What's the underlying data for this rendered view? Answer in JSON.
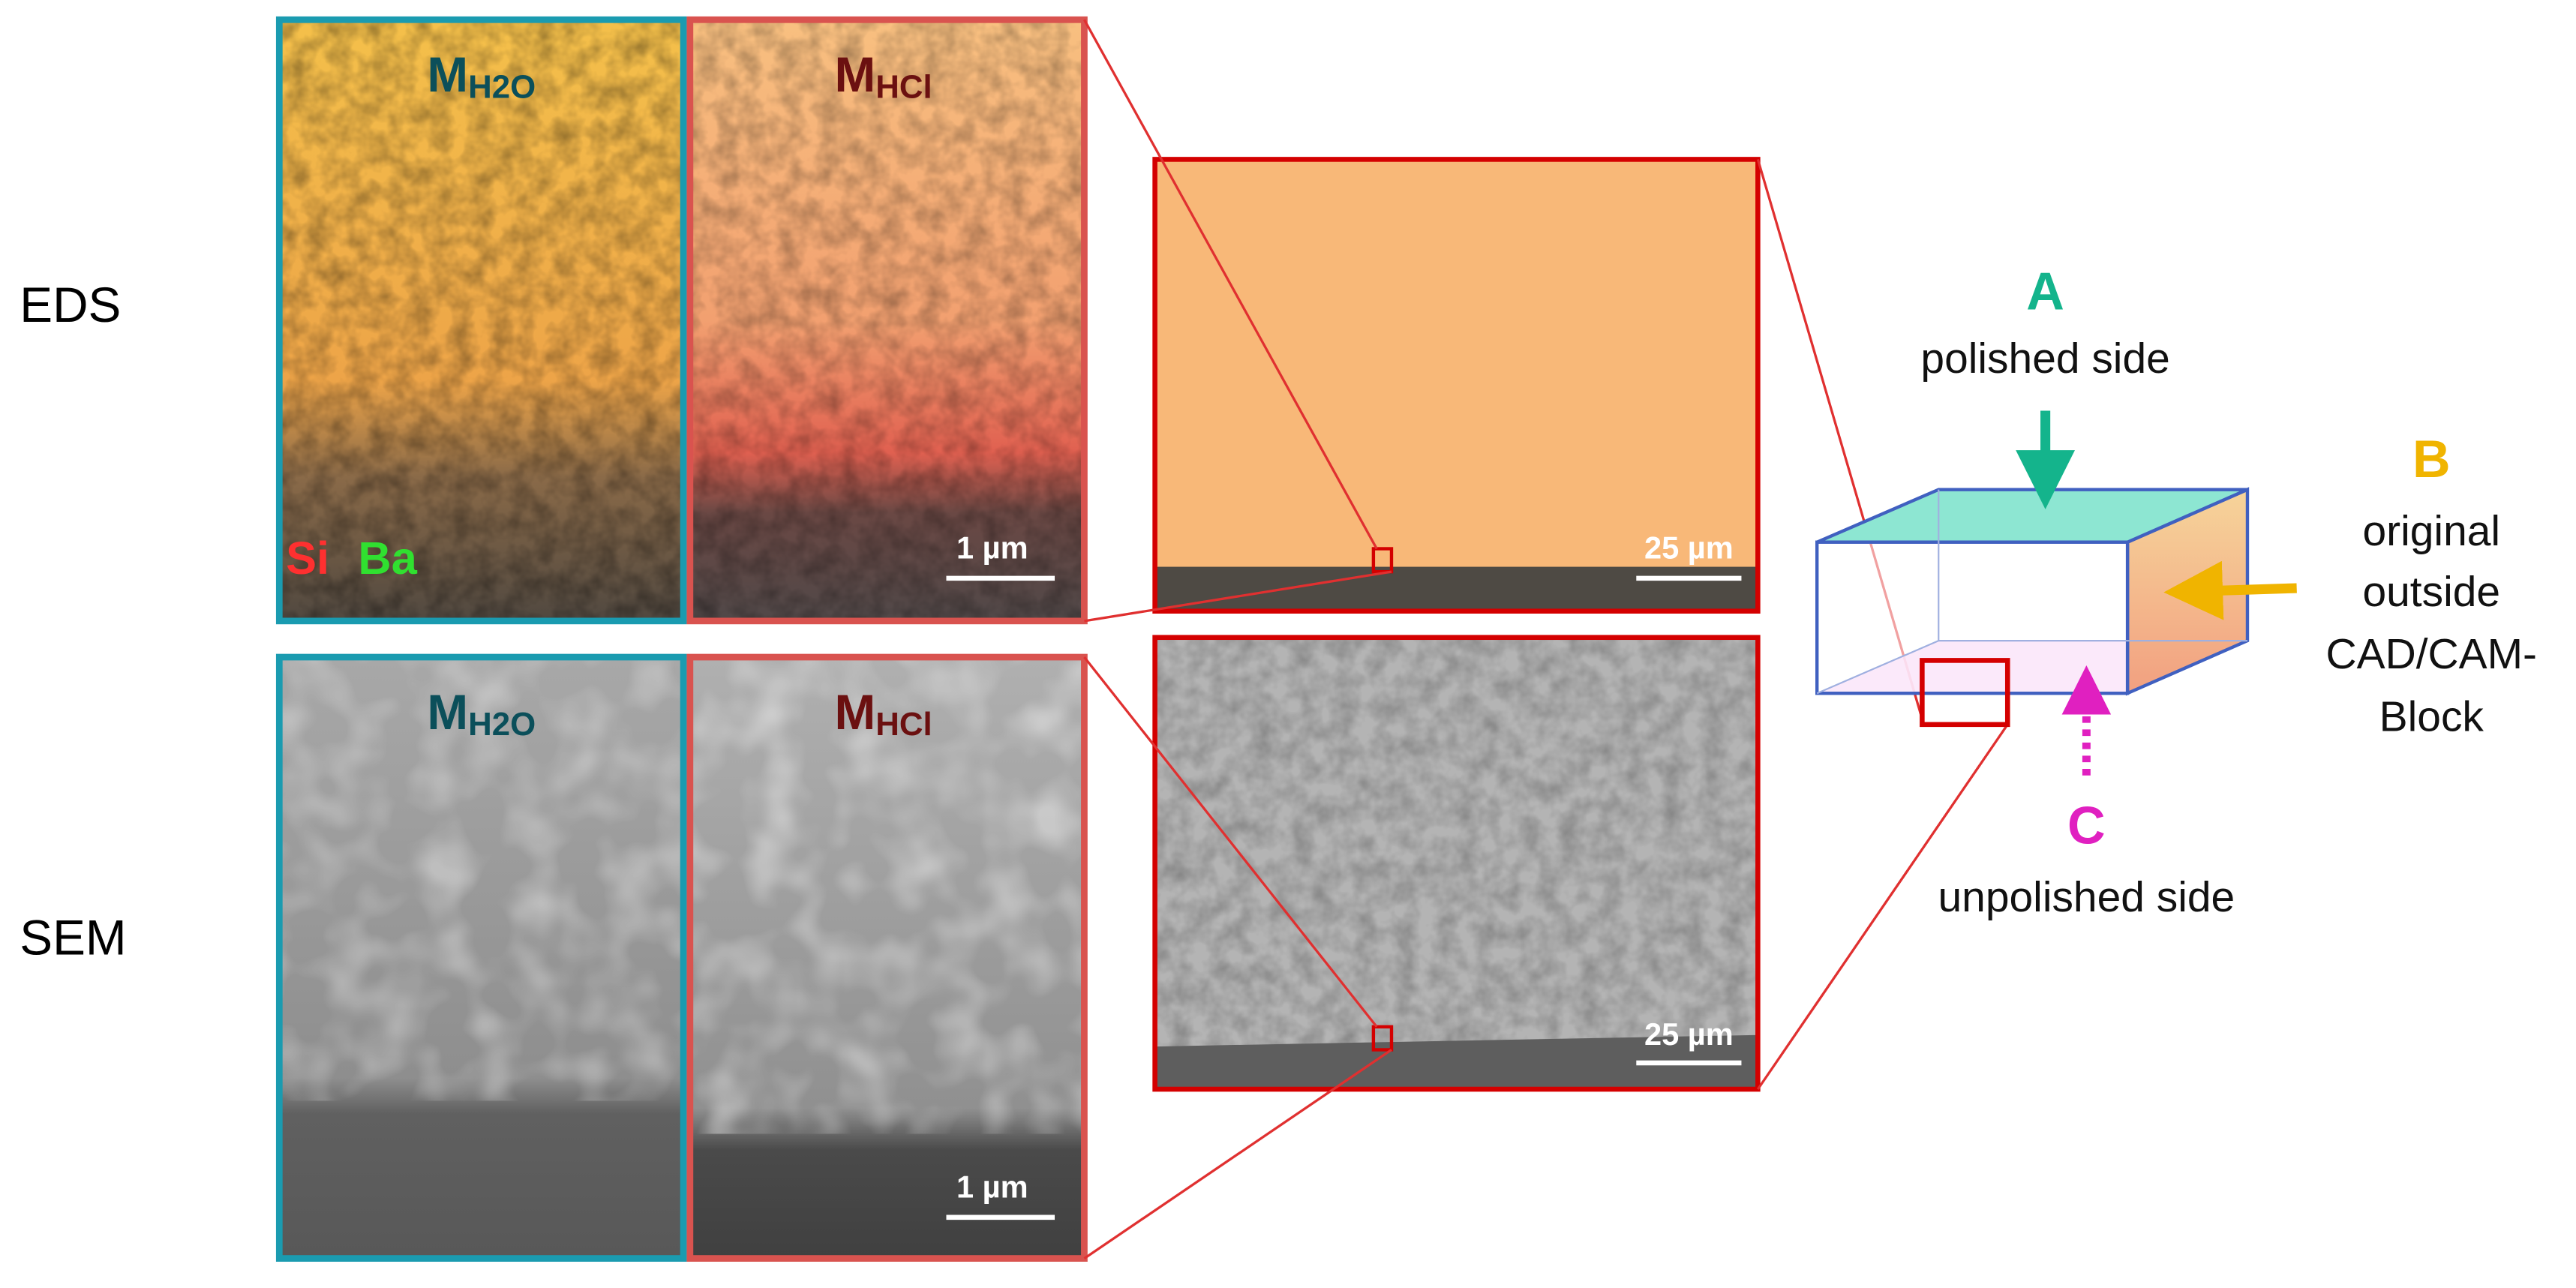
{
  "eds": {
    "row_label": "EDS",
    "left": {
      "label": "M",
      "subscript": "H2O"
    },
    "right": {
      "label": "M",
      "subscript": "HCl"
    },
    "elements": [
      "Si",
      "Ba"
    ],
    "scale_bar": "1 µm",
    "overview_scale_bar": "25 µm"
  },
  "sem": {
    "row_label": "SEM",
    "left": {
      "label": "M",
      "subscript": "H2O"
    },
    "right": {
      "label": "M",
      "subscript": "HCl"
    },
    "scale_bar": "1 µm",
    "overview_scale_bar": "25 µm"
  },
  "block": {
    "a": {
      "letter": "A",
      "text": "polished side"
    },
    "b": {
      "letter": "B",
      "lines": [
        "original",
        "outside",
        "CAD/CAM-",
        "Block"
      ]
    },
    "c": {
      "letter": "C",
      "text": "unpolished side"
    }
  }
}
